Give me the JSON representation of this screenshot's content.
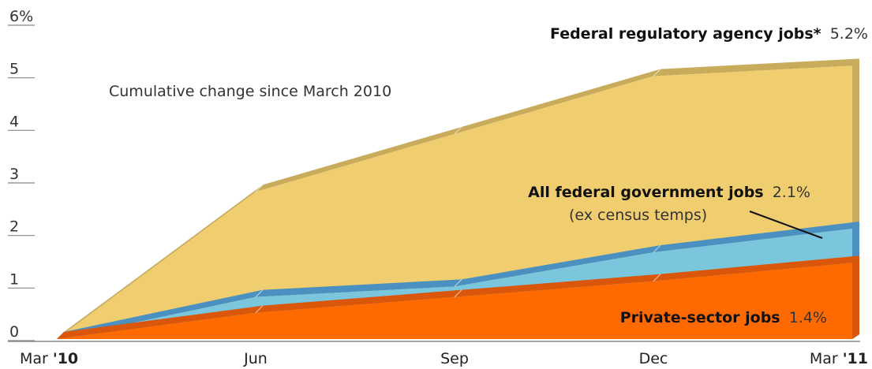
{
  "chart_data": {
    "type": "area",
    "subtitle": "Cumulative change since March 2010",
    "y_ticks": [
      "0",
      "1",
      "2",
      "3",
      "4",
      "5",
      "6%"
    ],
    "ylim": [
      0,
      6
    ],
    "x_ticks": [
      {
        "prefix": "Mar ",
        "bold": "'10"
      },
      {
        "prefix": "Jun",
        "bold": ""
      },
      {
        "prefix": "Sep",
        "bold": ""
      },
      {
        "prefix": "Dec",
        "bold": ""
      },
      {
        "prefix": "Mar ",
        "bold": "'11"
      }
    ],
    "x": [
      "Mar 2010",
      "Jun 2010",
      "Sep 2010",
      "Dec 2010",
      "Mar 2011"
    ],
    "grid": false,
    "series": [
      {
        "name": "Federal regulatory agency jobs*",
        "end_label": "5.2%",
        "values": [
          0.0,
          2.8,
          3.9,
          5.0,
          5.2
        ],
        "color": "#f0cd6e",
        "edge_color": "#c9ab5c"
      },
      {
        "name": "All federal government jobs",
        "note": "(ex census temps)",
        "end_label": "2.1%",
        "values": [
          0.0,
          0.8,
          1.0,
          1.65,
          2.1
        ],
        "color": "#7ac6dd",
        "edge_color": "#4a90c0"
      },
      {
        "name": "Private-sector jobs",
        "end_label": "1.4%",
        "values": [
          0.0,
          0.5,
          0.8,
          1.1,
          1.45
        ],
        "color": "#ff6a00",
        "edge_color": "#d9560a"
      }
    ]
  }
}
